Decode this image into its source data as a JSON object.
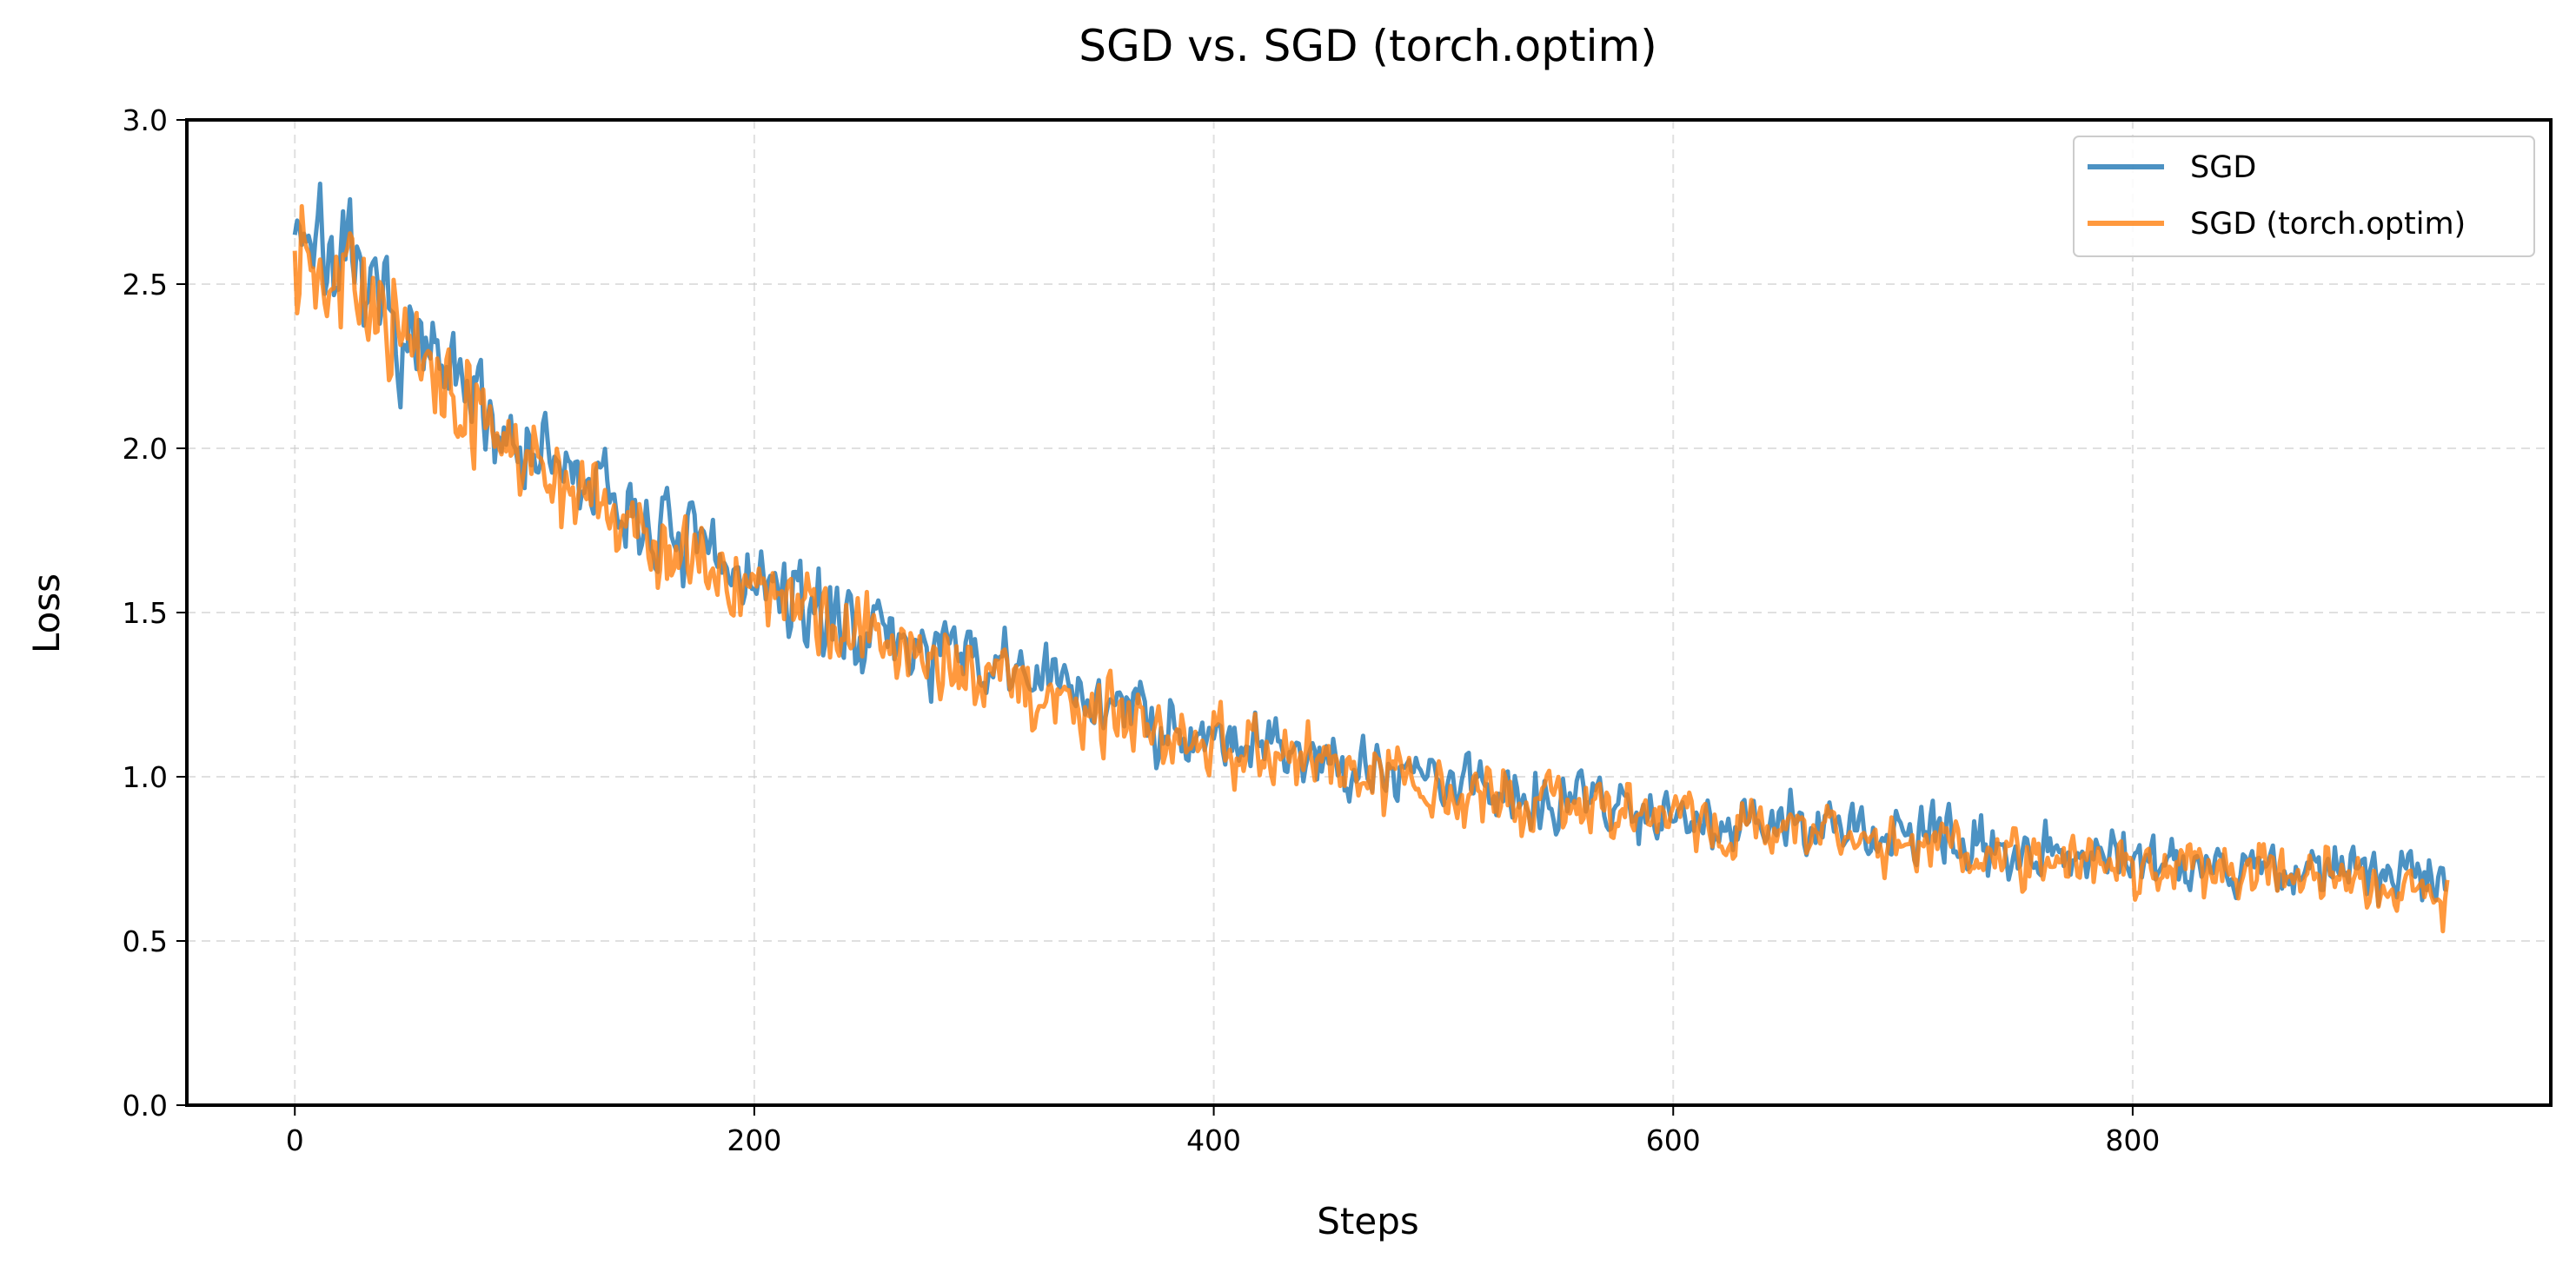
{
  "chart_data": {
    "type": "line",
    "title": "SGD vs. SGD (torch.optim)",
    "xlabel": "Steps",
    "ylabel": "Loss",
    "xlim": [
      -47,
      982
    ],
    "ylim": [
      0.0,
      3.0
    ],
    "x_ticks": [
      0,
      200,
      400,
      600,
      800
    ],
    "y_ticks": [
      0.0,
      0.5,
      1.0,
      1.5,
      2.0,
      2.5,
      3.0
    ],
    "x_tick_labels": [
      "0",
      "200",
      "400",
      "600",
      "800"
    ],
    "y_tick_labels": [
      "0.0",
      "0.5",
      "1.0",
      "1.5",
      "2.0",
      "2.5",
      "3.0"
    ],
    "grid": true,
    "legend_position": "top-right",
    "series": [
      {
        "name": "SGD",
        "color": "#1f77b4",
        "x": [
          0,
          20,
          40,
          60,
          80,
          100,
          120,
          140,
          160,
          180,
          200,
          220,
          240,
          260,
          280,
          300,
          320,
          340,
          360,
          380,
          400,
          420,
          440,
          460,
          480,
          500,
          520,
          540,
          560,
          580,
          600,
          620,
          640,
          660,
          680,
          700,
          720,
          740,
          760,
          780,
          800,
          820,
          840,
          860,
          880,
          900,
          920,
          937
        ],
        "y": [
          2.72,
          2.55,
          2.4,
          2.25,
          2.12,
          2.0,
          1.92,
          1.83,
          1.74,
          1.67,
          1.6,
          1.52,
          1.47,
          1.42,
          1.38,
          1.34,
          1.31,
          1.26,
          1.21,
          1.16,
          1.13,
          1.1,
          1.07,
          1.04,
          1.02,
          0.99,
          0.97,
          0.95,
          0.93,
          0.91,
          0.89,
          0.87,
          0.86,
          0.84,
          0.83,
          0.82,
          0.8,
          0.79,
          0.78,
          0.77,
          0.76,
          0.74,
          0.73,
          0.72,
          0.71,
          0.71,
          0.7,
          0.69
        ],
        "noise": [
          0.12,
          0.11,
          0.11,
          0.1,
          0.1,
          0.09,
          0.09,
          0.09,
          0.08,
          0.08,
          0.08,
          0.08,
          0.08,
          0.08,
          0.08,
          0.08,
          0.07,
          0.07,
          0.07,
          0.07,
          0.07,
          0.07,
          0.07,
          0.07,
          0.07,
          0.07,
          0.07,
          0.07,
          0.06,
          0.06,
          0.06,
          0.06,
          0.06,
          0.06,
          0.06,
          0.06,
          0.06,
          0.06,
          0.06,
          0.06,
          0.06,
          0.06,
          0.06,
          0.06,
          0.06,
          0.06,
          0.06,
          0.06
        ],
        "num_steps": 938,
        "seed": 7
      },
      {
        "name": "SGD (torch.optim)",
        "color": "#ff7f0e",
        "x": [
          0,
          20,
          40,
          60,
          80,
          100,
          120,
          140,
          160,
          180,
          200,
          220,
          240,
          260,
          280,
          300,
          320,
          340,
          360,
          380,
          400,
          420,
          440,
          460,
          480,
          500,
          520,
          540,
          560,
          580,
          600,
          620,
          640,
          660,
          680,
          700,
          720,
          740,
          760,
          780,
          800,
          820,
          840,
          860,
          880,
          900,
          920,
          937
        ],
        "y": [
          2.68,
          2.53,
          2.38,
          2.22,
          2.09,
          1.98,
          1.88,
          1.79,
          1.71,
          1.64,
          1.57,
          1.5,
          1.45,
          1.4,
          1.35,
          1.31,
          1.27,
          1.22,
          1.18,
          1.14,
          1.11,
          1.08,
          1.05,
          1.02,
          1.0,
          0.97,
          0.95,
          0.93,
          0.91,
          0.89,
          0.87,
          0.85,
          0.84,
          0.82,
          0.81,
          0.8,
          0.78,
          0.77,
          0.76,
          0.75,
          0.74,
          0.73,
          0.72,
          0.71,
          0.7,
          0.69,
          0.68,
          0.62
        ],
        "noise": [
          0.12,
          0.11,
          0.11,
          0.1,
          0.1,
          0.09,
          0.09,
          0.09,
          0.08,
          0.08,
          0.08,
          0.08,
          0.08,
          0.08,
          0.08,
          0.08,
          0.07,
          0.07,
          0.07,
          0.07,
          0.07,
          0.07,
          0.07,
          0.07,
          0.07,
          0.07,
          0.07,
          0.07,
          0.06,
          0.06,
          0.06,
          0.06,
          0.06,
          0.06,
          0.06,
          0.06,
          0.06,
          0.06,
          0.06,
          0.06,
          0.06,
          0.06,
          0.06,
          0.06,
          0.06,
          0.06,
          0.06,
          0.06
        ],
        "num_steps": 938,
        "seed": 13
      }
    ]
  }
}
